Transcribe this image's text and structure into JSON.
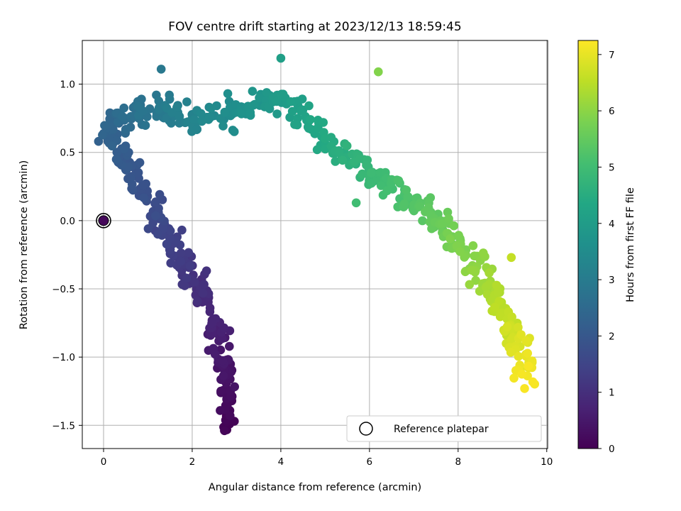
{
  "chart_data": {
    "type": "scatter",
    "title": "FOV centre drift starting at 2023/12/13 18:59:45",
    "xlabel": "Angular distance from reference (arcmin)",
    "ylabel": "Rotation from reference (arcmin)",
    "xlim": [
      -0.48,
      10.02
    ],
    "ylim": [
      -1.67,
      1.32
    ],
    "xticks": [
      0,
      2,
      4,
      6,
      8,
      10
    ],
    "xtick_labels": [
      "0",
      "2",
      "4",
      "6",
      "8",
      "10"
    ],
    "yticks": [
      -1.5,
      -1.0,
      -0.5,
      0.0,
      0.5,
      1.0
    ],
    "ytick_labels": [
      "−1.5",
      "−1.0",
      "−0.5",
      "0.0",
      "0.5",
      "1.0"
    ],
    "grid": true,
    "colormap": "viridis",
    "colorbar": {
      "label": "Hours from first FF file",
      "range": [
        0,
        7.25
      ],
      "ticks": [
        0,
        1,
        2,
        3,
        4,
        5,
        6,
        7
      ],
      "tick_labels": [
        "0",
        "1",
        "2",
        "3",
        "4",
        "5",
        "6",
        "7"
      ]
    },
    "legend": {
      "position": "lower right",
      "entries": [
        "Reference platepar"
      ]
    },
    "reference_point": {
      "x": 0,
      "y": 0
    },
    "path_points": [
      [
        2.75,
        -1.52,
        0.0
      ],
      [
        2.85,
        -1.42,
        0.12
      ],
      [
        2.75,
        -1.3,
        0.24
      ],
      [
        2.8,
        -1.15,
        0.36
      ],
      [
        2.65,
        -1.02,
        0.48
      ],
      [
        2.6,
        -0.88,
        0.6
      ],
      [
        2.52,
        -0.75,
        0.72
      ],
      [
        2.35,
        -0.63,
        0.84
      ],
      [
        2.2,
        -0.52,
        0.96
      ],
      [
        2.05,
        -0.42,
        1.08
      ],
      [
        1.85,
        -0.33,
        1.2
      ],
      [
        1.65,
        -0.22,
        1.32
      ],
      [
        1.45,
        -0.12,
        1.44
      ],
      [
        1.25,
        -0.02,
        1.56
      ],
      [
        1.15,
        0.1,
        1.68
      ],
      [
        0.95,
        0.2,
        1.8
      ],
      [
        0.75,
        0.32,
        1.92
      ],
      [
        0.5,
        0.42,
        2.04
      ],
      [
        0.3,
        0.52,
        2.16
      ],
      [
        0.15,
        0.62,
        2.28
      ],
      [
        0.22,
        0.7,
        2.4
      ],
      [
        0.45,
        0.76,
        2.55
      ],
      [
        0.75,
        0.8,
        2.7
      ],
      [
        1.1,
        0.82,
        2.85
      ],
      [
        1.45,
        0.8,
        3.0
      ],
      [
        1.8,
        0.76,
        3.15
      ],
      [
        2.2,
        0.74,
        3.3
      ],
      [
        2.6,
        0.76,
        3.45
      ],
      [
        3.0,
        0.8,
        3.6
      ],
      [
        3.4,
        0.84,
        3.75
      ],
      [
        3.8,
        0.88,
        3.9
      ],
      [
        4.15,
        0.85,
        4.05
      ],
      [
        4.5,
        0.75,
        4.2
      ],
      [
        4.85,
        0.62,
        4.35
      ],
      [
        5.2,
        0.52,
        4.5
      ],
      [
        5.55,
        0.45,
        4.65
      ],
      [
        5.9,
        0.38,
        4.8
      ],
      [
        6.25,
        0.3,
        4.95
      ],
      [
        6.6,
        0.22,
        5.1
      ],
      [
        6.95,
        0.15,
        5.25
      ],
      [
        7.3,
        0.08,
        5.4
      ],
      [
        7.6,
        -0.02,
        5.55
      ],
      [
        7.85,
        -0.12,
        5.7
      ],
      [
        8.1,
        -0.22,
        5.85
      ],
      [
        8.35,
        -0.32,
        6.0
      ],
      [
        8.55,
        -0.42,
        6.15
      ],
      [
        8.75,
        -0.52,
        6.3
      ],
      [
        8.95,
        -0.62,
        6.45
      ],
      [
        9.1,
        -0.72,
        6.6
      ],
      [
        9.25,
        -0.82,
        6.75
      ],
      [
        9.4,
        -0.92,
        6.9
      ],
      [
        9.48,
        -1.05,
        7.05
      ],
      [
        9.52,
        -1.15,
        7.2
      ]
    ],
    "scatter_noise_arcmin": 0.12,
    "points_per_segment": 13,
    "outliers": [
      {
        "x": 6.2,
        "y": 1.09,
        "t": 5.9
      },
      {
        "x": 9.5,
        "y": -1.23,
        "t": 7.2
      },
      {
        "x": 4.0,
        "y": 1.19,
        "t": 4.1
      },
      {
        "x": 1.3,
        "y": 1.11,
        "t": 2.9
      },
      {
        "x": 9.2,
        "y": -0.27,
        "t": 6.6
      },
      {
        "x": 5.7,
        "y": 0.13,
        "t": 5.0
      }
    ]
  }
}
